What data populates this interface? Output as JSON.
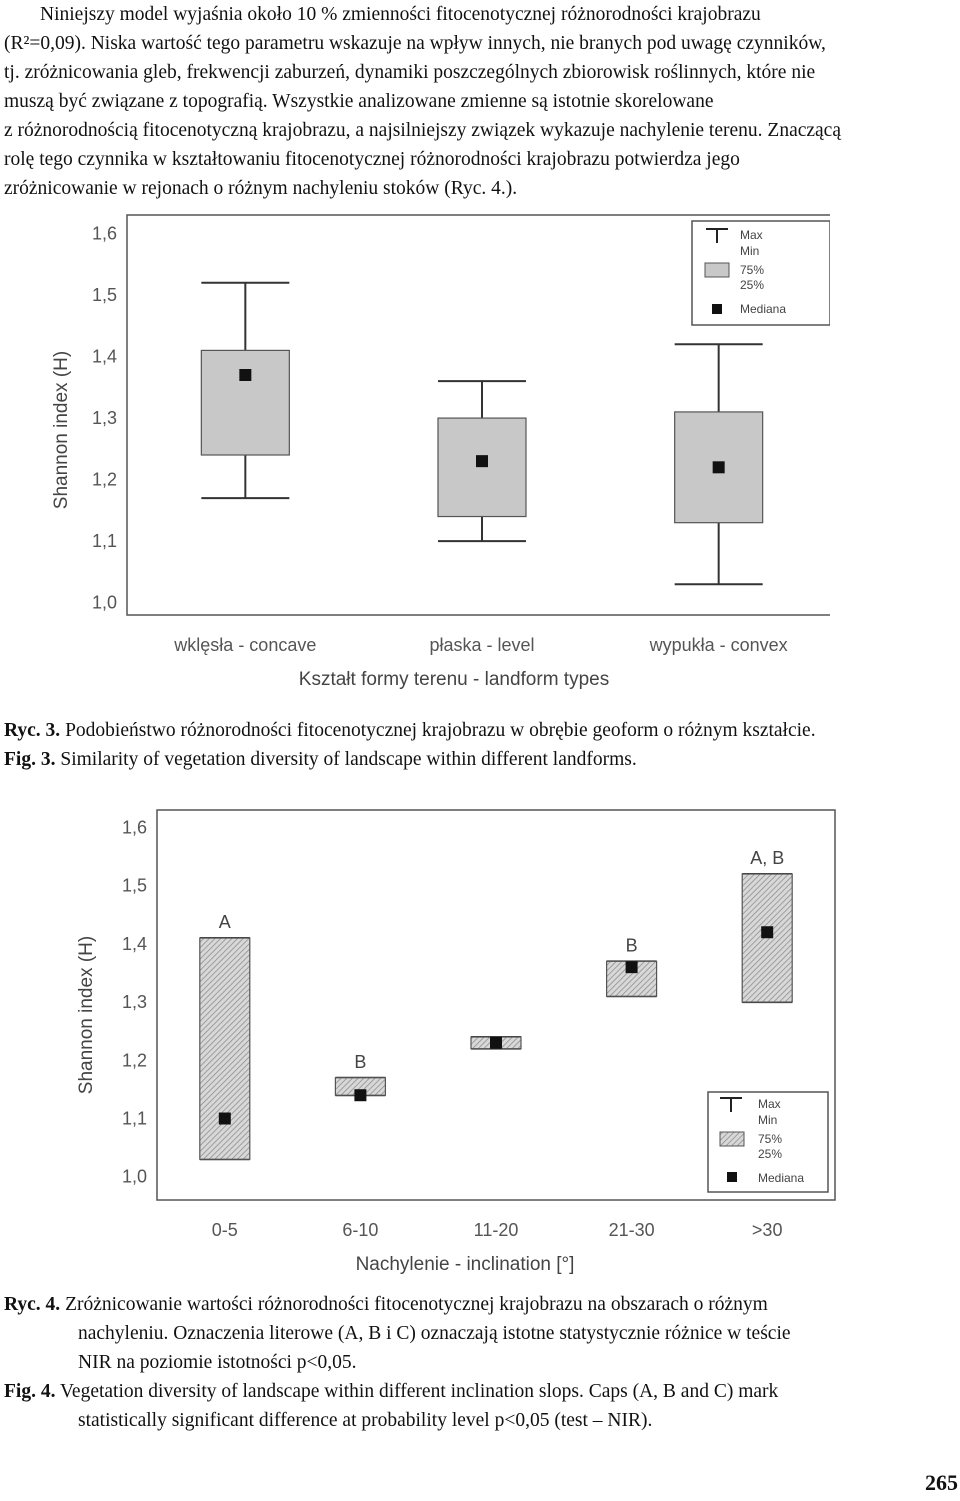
{
  "paragraph": {
    "lines": [
      "Niniejszy model wyjaśnia około 10 % zmienności fitocenotycznej różnorodności krajobrazu",
      "(R²=0,09). Niska wartość tego parametru wskazuje na wpływ innych, nie branych pod uwagę czynników,",
      "tj. zróżnicowania gleb, frekwencji zaburzeń, dynamiki poszczególnych zbiorowisk roślinnych, które nie",
      "muszą być związane z topografią. Wszystkie analizowane zmienne są istotnie skorelowane",
      "z różnorodnością fitocenotyczną krajobrazu, a najsilniejszy związek wykazuje nachylenie terenu. Znaczącą",
      "rolę tego czynnika w kształtowaniu fitocenotycznej różnorodności krajobrazu potwierdza jego",
      "zróżnicowanie w rejonach o różnym nachyleniu stoków (Ryc. 4.)."
    ]
  },
  "figure3": {
    "ylabel": "Shannon index (H)",
    "xlabel": "Kształt formy terenu - landform types",
    "legend": {
      "max": "Max",
      "min": "Min",
      "q75": "75%",
      "q25": "25%",
      "median": "Mediana"
    },
    "caption_pl_label": "Ryc. 3.",
    "caption_pl": "Podobieństwo różnorodności fitocenotycznej krajobrazu w obrębie geoform o różnym kształcie.",
    "caption_en_label": "Fig. 3.",
    "caption_en": "Similarity of vegetation diversity of landscape within different landforms."
  },
  "figure4": {
    "ylabel": "Shannon index (H)",
    "xlabel": "Nachylenie - inclination [°]",
    "legend": {
      "max": "Max",
      "min": "Min",
      "q75": "75%",
      "q25": "25%",
      "median": "Mediana"
    },
    "caption_pl_label": "Ryc. 4.",
    "caption_pl_lines": [
      "Zróżnicowanie wartości różnorodności fitocenotycznej krajobrazu na obszarach o różnym",
      "nachyleniu. Oznaczenia literowe (A, B i C) oznaczają istotne statystycznie różnice w teście",
      "NIR na poziomie istotności p<0,05."
    ],
    "caption_en_label": "Fig. 4.",
    "caption_en_lines": [
      "Vegetation diversity of landscape within different inclination slops. Caps (A, B and C) mark",
      "statistically significant difference at probability level p<0,05 (test – NIR)."
    ]
  },
  "page_number": "265",
  "chart_data": [
    {
      "type": "boxplot",
      "xlabel": "Kształt formy terenu - landform types",
      "ylabel": "Shannon index (H)",
      "ylim": [
        0.98,
        1.63
      ],
      "yticks": [
        "1,0",
        "1,1",
        "1,2",
        "1,3",
        "1,4",
        "1,5",
        "1,6"
      ],
      "ytick_values": [
        1.0,
        1.1,
        1.2,
        1.3,
        1.4,
        1.5,
        1.6
      ],
      "categories": [
        "wklęsła - concave",
        "płaska - level",
        "wypukła - convex"
      ],
      "min": [
        1.17,
        1.1,
        1.03
      ],
      "q25": [
        1.24,
        1.14,
        1.13
      ],
      "median": [
        1.37,
        1.23,
        1.22
      ],
      "q75": [
        1.41,
        1.3,
        1.31
      ],
      "max": [
        1.52,
        1.36,
        1.42
      ],
      "legend_position": "top-right",
      "grid": false
    },
    {
      "type": "boxplot",
      "xlabel": "Nachylenie - inclination [°]",
      "ylabel": "Shannon index (H)",
      "ylim": [
        0.96,
        1.63
      ],
      "yticks": [
        "1,0",
        "1,1",
        "1,2",
        "1,3",
        "1,4",
        "1,5",
        "1,6"
      ],
      "ytick_values": [
        1.0,
        1.1,
        1.2,
        1.3,
        1.4,
        1.5,
        1.6
      ],
      "categories": [
        "0-5",
        "6-10",
        "11-20",
        "21-30",
        ">30"
      ],
      "min": [
        1.03,
        1.14,
        1.22,
        1.31,
        1.3
      ],
      "q25": [
        1.03,
        1.14,
        1.22,
        1.31,
        1.3
      ],
      "median": [
        1.1,
        1.14,
        1.23,
        1.36,
        1.42
      ],
      "q75": [
        1.41,
        1.17,
        1.24,
        1.37,
        1.52
      ],
      "max": [
        1.41,
        1.17,
        1.24,
        1.37,
        1.52
      ],
      "group_letters": [
        "A",
        "B",
        "",
        "B",
        "A, B"
      ],
      "legend_position": "bottom-right",
      "grid": false
    }
  ]
}
